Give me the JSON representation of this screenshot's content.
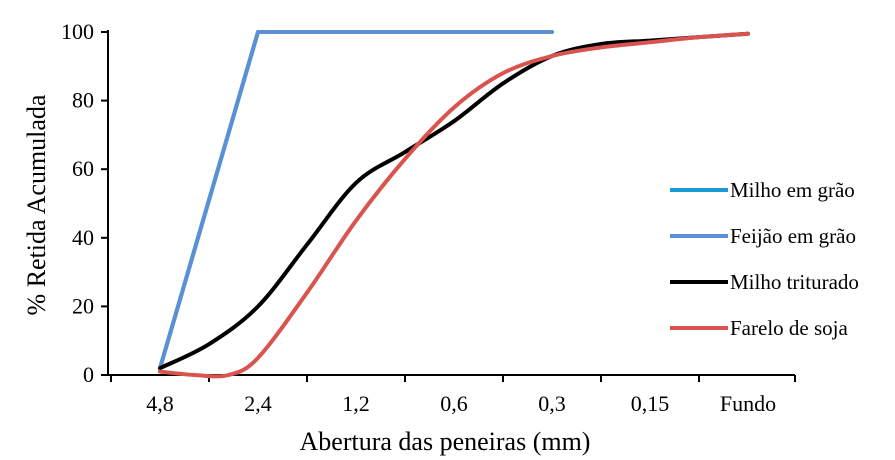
{
  "chart_data": {
    "type": "line",
    "title": "",
    "xlabel": "Abertura das peneiras (mm)",
    "ylabel": "% Retida Acumulada",
    "categories": [
      "4,8",
      "2,4",
      "1,2",
      "0,6",
      "0,3",
      "0,15",
      "Fundo"
    ],
    "ylim": [
      0,
      100
    ],
    "yticks": [
      "0",
      "20",
      "40",
      "60",
      "80",
      "100"
    ],
    "grid": false,
    "legend_position": "right",
    "series": [
      {
        "name": "Milho em grão",
        "color": "#1b9ad6",
        "smooth": false,
        "x": [
          0,
          1,
          2,
          3,
          4
        ],
        "y": [
          2,
          100,
          100,
          100,
          100
        ]
      },
      {
        "name": "Feijão em grão",
        "color": "#5b8fd6",
        "smooth": false,
        "x": [
          0,
          1,
          2,
          3,
          4
        ],
        "y": [
          2,
          100,
          100,
          100,
          100
        ]
      },
      {
        "name": "Milho triturado",
        "color": "#000000",
        "smooth": true,
        "x": [
          0,
          0.5,
          1,
          1.5,
          2,
          2.5,
          3,
          3.5,
          4,
          4.5,
          5,
          5.5,
          6
        ],
        "y": [
          2,
          9,
          20,
          38,
          56,
          65,
          74,
          85,
          93,
          96.5,
          97.5,
          98.5,
          99.5
        ]
      },
      {
        "name": "Farelo de soja",
        "color": "#d9534f",
        "smooth": true,
        "x": [
          0,
          0.35,
          0.7,
          1,
          1.5,
          2,
          2.5,
          3,
          3.5,
          4,
          4.5,
          5,
          5.5,
          6
        ],
        "y": [
          1,
          0,
          0,
          5,
          24,
          45,
          63,
          78,
          88,
          93,
          95.5,
          97,
          98.5,
          99.5
        ]
      }
    ]
  }
}
